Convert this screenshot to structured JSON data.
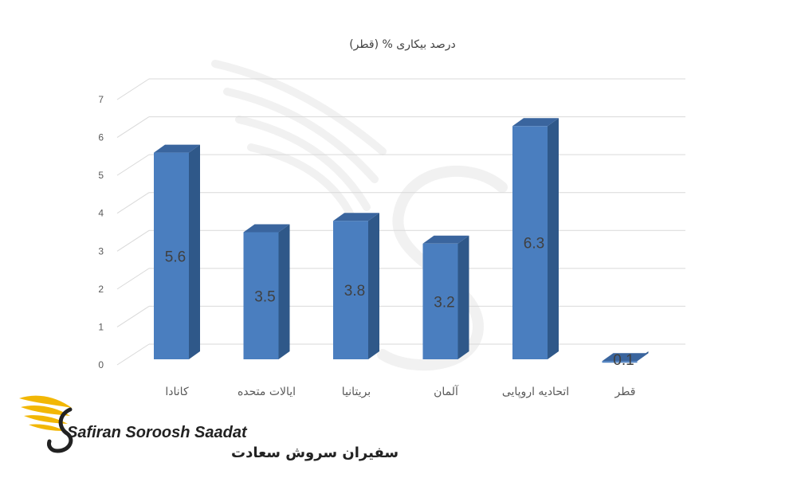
{
  "chart_data": {
    "type": "bar",
    "title": "درصد بیکاری % (قطر)",
    "categories": [
      "کانادا",
      "ایالات متحده",
      "بریتانیا",
      "آلمان",
      "اتحادیه اروپایی",
      "قطر"
    ],
    "values": [
      5.6,
      3.5,
      3.8,
      3.2,
      6.3,
      0.1
    ],
    "data_labels": [
      "5.6",
      "3.5",
      "3.8",
      "3.2",
      "6.3",
      "0.1"
    ],
    "ylim": [
      0,
      7
    ],
    "yticks": [
      0,
      1,
      2,
      3,
      4,
      5,
      6,
      7
    ],
    "xlabel": "",
    "ylabel": "",
    "grid": true,
    "style": "3d-column",
    "colors": {
      "front": "#4a7ebf",
      "side": "#2f5889",
      "top": "#3a659e",
      "grid": "#d9d9d9",
      "watermark": "#f1f1f1"
    }
  },
  "logo": {
    "name_latin": "Safiran Soroosh Saadat",
    "name_persian": "سفیران سروش سعادت",
    "colors": {
      "wing": "#f2b705",
      "text": "#222222"
    }
  }
}
